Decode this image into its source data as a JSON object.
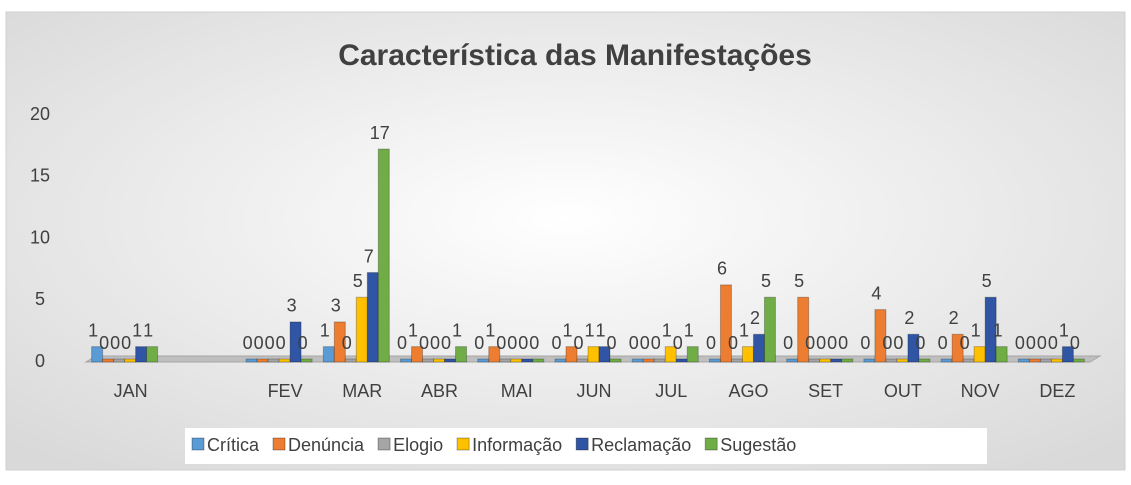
{
  "chart_data": {
    "type": "bar",
    "title": "Característica das Manifestações",
    "categories": [
      "JAN",
      null,
      "FEV",
      "MAR",
      "ABR",
      "MAI",
      "JUN",
      "JUL",
      "AGO",
      "SET",
      "OUT",
      "NOV",
      "DEZ"
    ],
    "series": [
      {
        "name": "Crítica",
        "color": "#5b9bd5",
        "values": [
          1,
          null,
          0,
          1,
          0,
          0,
          0,
          0,
          0,
          0,
          0,
          0,
          0
        ]
      },
      {
        "name": "Denúncia",
        "color": "#ed7d31",
        "values": [
          0,
          null,
          0,
          3,
          1,
          1,
          1,
          0,
          6,
          5,
          4,
          2,
          0
        ]
      },
      {
        "name": "Elogio",
        "color": "#a5a5a5",
        "values": [
          0,
          null,
          0,
          0,
          0,
          0,
          0,
          0,
          0,
          0,
          0,
          0,
          0
        ]
      },
      {
        "name": "Informação",
        "color": "#ffc000",
        "values": [
          0,
          null,
          0,
          5,
          0,
          0,
          1,
          1,
          1,
          0,
          0,
          1,
          0
        ]
      },
      {
        "name": "Reclamação",
        "color": "#2f55a4",
        "values": [
          1,
          null,
          3,
          7,
          0,
          0,
          1,
          0,
          2,
          0,
          2,
          5,
          1
        ]
      },
      {
        "name": "Sugestão",
        "color": "#70ad47",
        "values": [
          1,
          null,
          0,
          17,
          1,
          0,
          0,
          1,
          5,
          0,
          0,
          1,
          0
        ]
      }
    ],
    "ylim": [
      0,
      20
    ],
    "yticks": [
      0,
      5,
      10,
      15,
      20
    ],
    "legend": "bottom"
  }
}
